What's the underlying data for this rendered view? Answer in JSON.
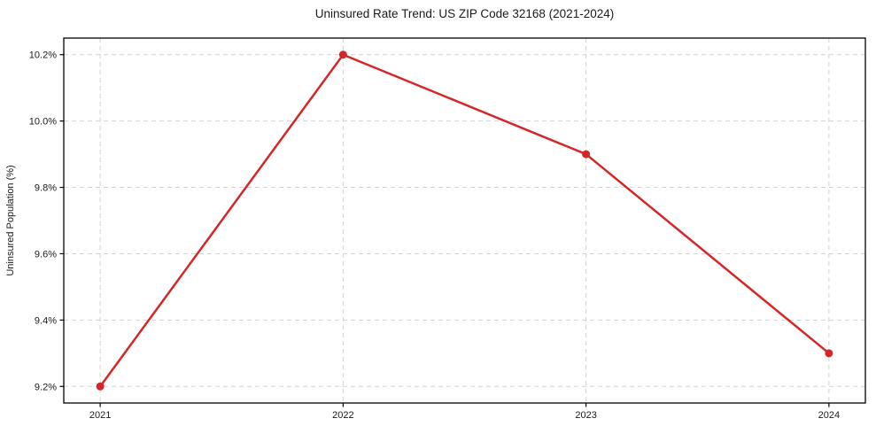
{
  "chart_data": {
    "type": "line",
    "title": "Uninsured Rate Trend: US ZIP Code 32168 (2021-2024)",
    "xlabel": "",
    "ylabel": "Uninsured Population (%)",
    "x": [
      2021,
      2022,
      2023,
      2024
    ],
    "values": [
      9.2,
      10.2,
      9.9,
      9.3
    ],
    "xticks": [
      2021,
      2022,
      2023,
      2024
    ],
    "xtick_labels": [
      "2021",
      "2022",
      "2023",
      "2024"
    ],
    "yticks": [
      9.2,
      9.4,
      9.6,
      9.8,
      10.0,
      10.2
    ],
    "ytick_labels": [
      "9.2%",
      "9.4%",
      "9.6%",
      "9.8%",
      "10.0%",
      "10.2%"
    ],
    "xlim": [
      2020.85,
      2024.15
    ],
    "ylim": [
      9.15,
      10.25
    ],
    "grid": true,
    "grid_style": "dashed",
    "legend": "none",
    "line_color": "#d62728",
    "marker": "circle",
    "grid_color": "#d4d4d4",
    "spine_color": "#000000",
    "tick_color": "#000000",
    "background_color": "#ffffff"
  }
}
